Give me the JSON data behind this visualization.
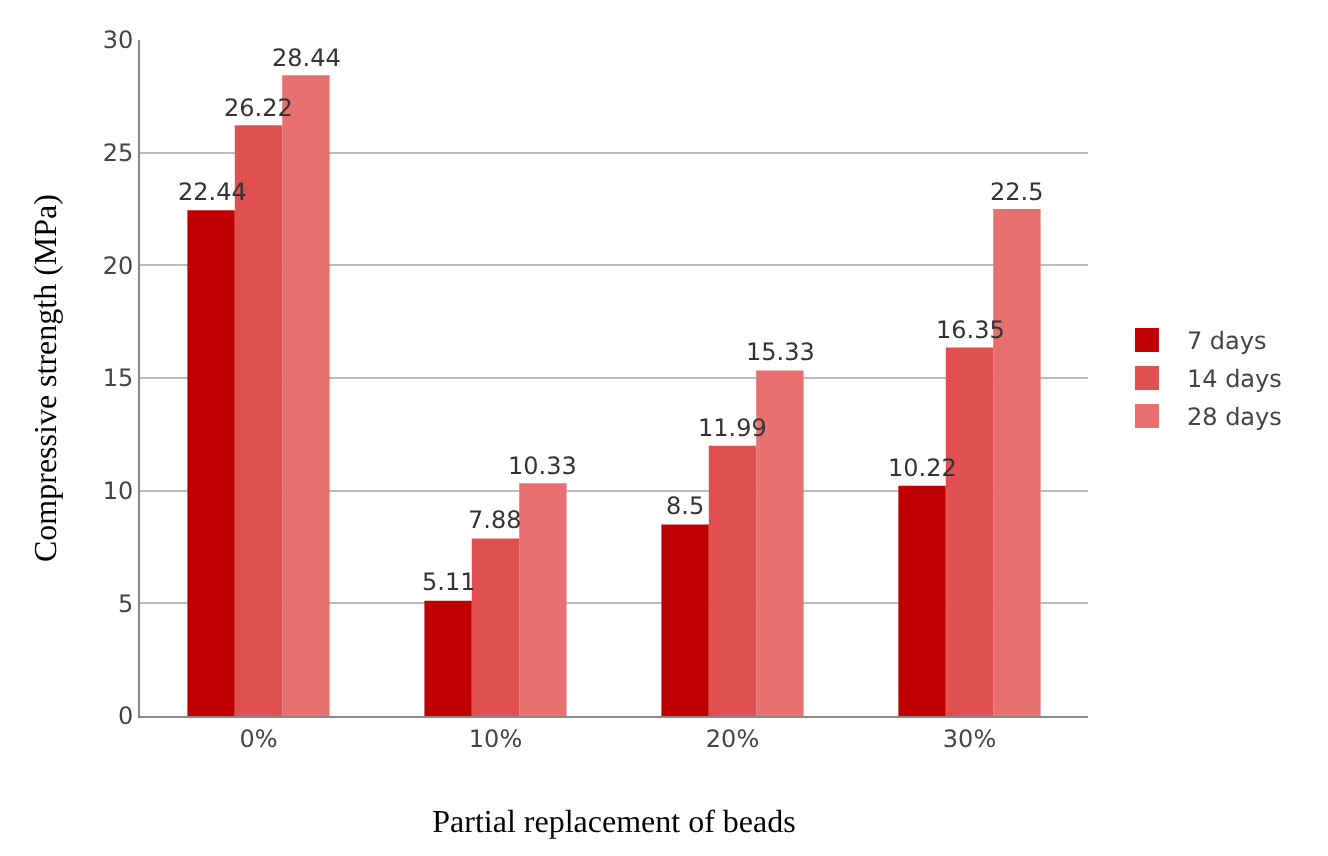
{
  "chart_data": {
    "type": "bar",
    "xlabel": "Partial replacement of beads",
    "ylabel": "Compressive strength (MPa)",
    "categories": [
      "0%",
      "10%",
      "20%",
      "30%"
    ],
    "series": [
      {
        "name": "7 days",
        "color": "#c00000",
        "values": [
          22.44,
          5.11,
          8.5,
          10.22
        ]
      },
      {
        "name": "14 days",
        "color": "#e05050",
        "values": [
          26.22,
          7.88,
          11.99,
          16.35
        ]
      },
      {
        "name": "28 days",
        "color": "#e87070",
        "values": [
          28.44,
          10.33,
          15.33,
          22.5
        ]
      }
    ],
    "ylim": [
      0,
      30
    ],
    "yticks": [
      0,
      5,
      10,
      15,
      20,
      25,
      30
    ],
    "grid": "y",
    "legend": "right",
    "data_labels": true
  }
}
